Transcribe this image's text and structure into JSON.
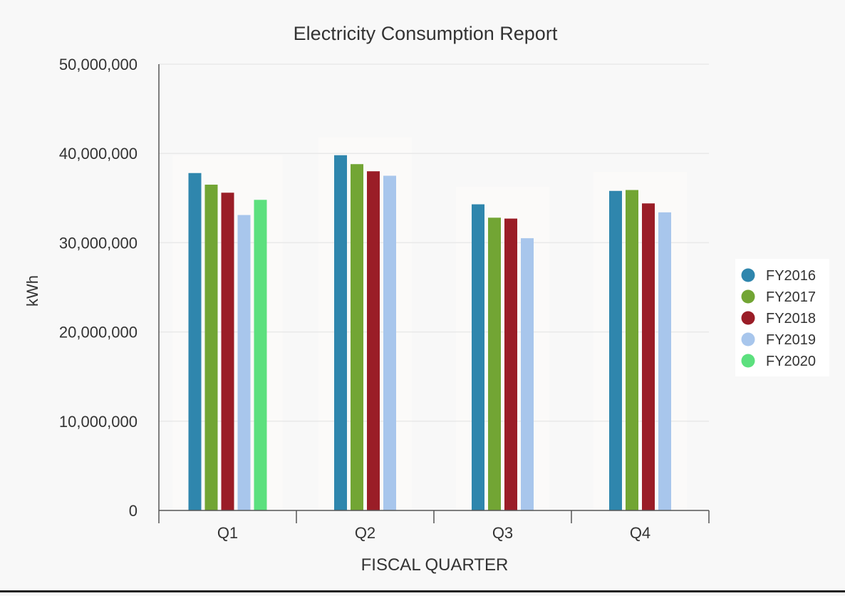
{
  "chart_data": {
    "type": "bar",
    "title": "Electricity Consumption Report",
    "xlabel": "FISCAL QUARTER",
    "ylabel": "kWh",
    "ylim": [
      0,
      50000000
    ],
    "yticks": [
      0,
      10000000,
      20000000,
      30000000,
      40000000,
      50000000
    ],
    "ytick_labels": [
      "0",
      "10,000,000",
      "20,000,000",
      "30,000,000",
      "40,000,000",
      "50,000,000"
    ],
    "grid": true,
    "legend_position": "right",
    "categories": [
      "Q1",
      "Q2",
      "Q3",
      "Q4"
    ],
    "series": [
      {
        "name": "FY2016",
        "color": "#2f86ad",
        "values": [
          37800000,
          39800000,
          34300000,
          35800000
        ]
      },
      {
        "name": "FY2017",
        "color": "#72a534",
        "values": [
          36500000,
          38800000,
          32800000,
          35900000
        ]
      },
      {
        "name": "FY2018",
        "color": "#9a1d27",
        "values": [
          35600000,
          38000000,
          32700000,
          34400000
        ]
      },
      {
        "name": "FY2019",
        "color": "#a8c6ec",
        "values": [
          33100000,
          37500000,
          30500000,
          33400000
        ]
      },
      {
        "name": "FY2020",
        "color": "#5ce07e",
        "values": [
          34800000,
          null,
          null,
          null
        ]
      }
    ]
  }
}
